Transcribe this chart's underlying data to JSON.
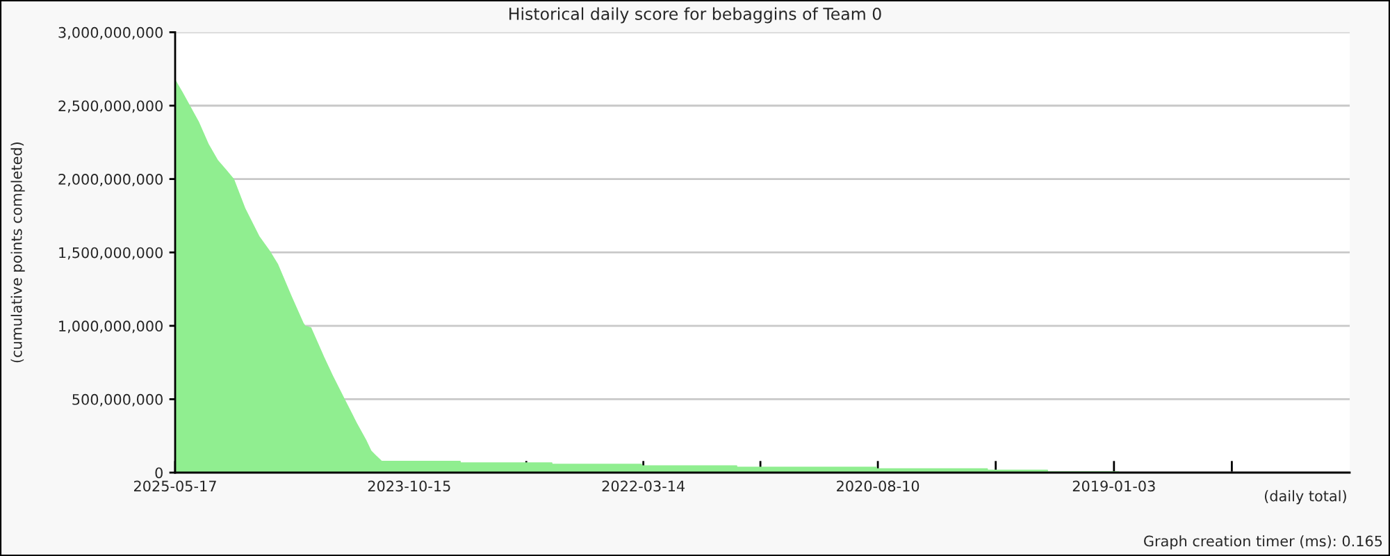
{
  "chart_data": {
    "type": "area",
    "title": "Historical daily score for bebaggins of Team 0",
    "xlabel": "(daily total)",
    "ylabel": "(cumulative points completed)",
    "annotations": [
      "Graph creation timer (ms): 0.165"
    ],
    "x": [
      "2025-05-17",
      "2025-04-28",
      "2025-04-10",
      "2025-03-19",
      "2025-02-23",
      "2025-01-31",
      "2025-01-09",
      "2024-12-22",
      "2024-11-24",
      "2024-10-20",
      "2024-09-24",
      "2024-09-04",
      "2024-08-01",
      "2024-07-03",
      "2024-06-28",
      "2024-06-14",
      "2024-05-13",
      "2024-04-21",
      "2024-03-17",
      "2024-02-22",
      "2024-01-29",
      "2024-01-17",
      "2024-01-06",
      "2023-12-22",
      "2023-06-10",
      "2023-06-09",
      "2022-10-26",
      "2022-10-25",
      "2022-03-18",
      "2022-03-17",
      "2021-07-25",
      "2021-07-24",
      "2020-08-13",
      "2020-08-12",
      "2019-11-12",
      "2019-11-11",
      "2019-06-16",
      "2019-06-15",
      "2018-12-22",
      "2018-12-21",
      "2018-03-21"
    ],
    "series": [
      {
        "color": "#90ee90",
        "values": [
          2680000000,
          2590000000,
          2500000000,
          2390000000,
          2240000000,
          2130000000,
          2060000000,
          2000000000,
          1800000000,
          1610000000,
          1510000000,
          1420000000,
          1200000000,
          1020000000,
          1000000000,
          990000000,
          790000000,
          660000000,
          470000000,
          340000000,
          220000000,
          150000000,
          120000000,
          80000000,
          80000000,
          70000000,
          70000000,
          60000000,
          60000000,
          50000000,
          50000000,
          40000000,
          40000000,
          30000000,
          30000000,
          20000000,
          20000000,
          10000000,
          10000000,
          5000000,
          5000000
        ]
      }
    ],
    "xlim": [
      "2025-05-17",
      "2017-05-29"
    ],
    "xticks": [
      "2025-05-17",
      {
        "value": "2024-07-31",
        "label": null
      },
      "2023-10-15",
      {
        "value": "2022-12-29",
        "label": null
      },
      "2022-03-14",
      {
        "value": "2021-05-28",
        "label": null
      },
      "2020-08-10",
      {
        "value": "2019-10-23",
        "label": null
      },
      "2019-01-03",
      {
        "value": "2018-03-17",
        "label": null
      }
    ],
    "ylim": [
      0,
      3000000000
    ],
    "yticks": [
      0,
      {
        "value": 500000000,
        "label": "500,000,000"
      },
      {
        "value": 1000000000,
        "label": "1,000,000,000"
      },
      {
        "value": 1500000000,
        "label": "1,500,000,000"
      },
      {
        "value": 2000000000,
        "label": "2,000,000,000"
      },
      {
        "value": 2500000000,
        "label": "2,500,000,000"
      },
      {
        "value": 3000000000,
        "label": "3,000,000,000"
      }
    ],
    "grid": "y"
  }
}
